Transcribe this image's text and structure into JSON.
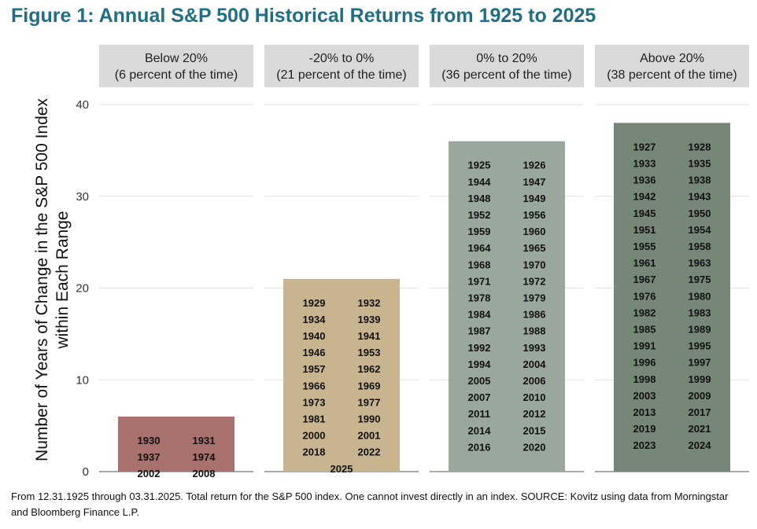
{
  "title": "Figure 1: Annual S&P 500 Historical Returns from 1925 to 2025",
  "footnote": "From 12.31.1925 through 03.31.2025. Total return for the S&P 500 index. One cannot invest directly in an index. SOURCE: Kovitz using data from Morningstar and Bloomberg Finance L.P.",
  "chart_data": {
    "type": "bar",
    "ylabel_line1": "Number of Years of Change in the S&P 500 Index",
    "ylabel_line2": "within Each Range",
    "ylim": [
      0,
      40
    ],
    "yticks": [
      0,
      10,
      20,
      30,
      40
    ],
    "grid": true,
    "panels": [
      {
        "label_line1": "Below 20%",
        "label_line2": "(6 percent of the time)",
        "value": 6,
        "color": "#a8716d",
        "years": [
          "1930",
          "1931",
          "1937",
          "1974",
          "2002",
          "2008"
        ]
      },
      {
        "label_line1": "-20% to 0%",
        "label_line2": "(21 percent of the time)",
        "value": 21,
        "color": "#c8b48f",
        "years": [
          "1929",
          "1932",
          "1934",
          "1939",
          "1940",
          "1941",
          "1946",
          "1953",
          "1957",
          "1962",
          "1966",
          "1969",
          "1973",
          "1977",
          "1981",
          "1990",
          "2000",
          "2001",
          "2018",
          "2022",
          "2025"
        ]
      },
      {
        "label_line1": "0% to 20%",
        "label_line2": "(36 percent of the time)",
        "value": 36,
        "color": "#9aa79d",
        "years": [
          "1925",
          "1926",
          "1944",
          "1947",
          "1948",
          "1949",
          "1952",
          "1956",
          "1959",
          "1960",
          "1964",
          "1965",
          "1968",
          "1970",
          "1971",
          "1972",
          "1978",
          "1979",
          "1984",
          "1986",
          "1987",
          "1988",
          "1992",
          "1993",
          "1994",
          "2004",
          "2005",
          "2006",
          "2007",
          "2010",
          "2011",
          "2012",
          "2014",
          "2015",
          "2016",
          "2020"
        ]
      },
      {
        "label_line1": "Above 20%",
        "label_line2": "(38 percent of the time)",
        "value": 38,
        "color": "#768677",
        "years": [
          "1927",
          "1928",
          "1933",
          "1935",
          "1936",
          "1938",
          "1942",
          "1943",
          "1945",
          "1950",
          "1951",
          "1954",
          "1955",
          "1958",
          "1961",
          "1963",
          "1967",
          "1975",
          "1976",
          "1980",
          "1982",
          "1983",
          "1985",
          "1989",
          "1991",
          "1995",
          "1996",
          "1997",
          "1998",
          "1999",
          "2003",
          "2009",
          "2013",
          "2017",
          "2019",
          "2021",
          "2023",
          "2024"
        ]
      }
    ]
  }
}
